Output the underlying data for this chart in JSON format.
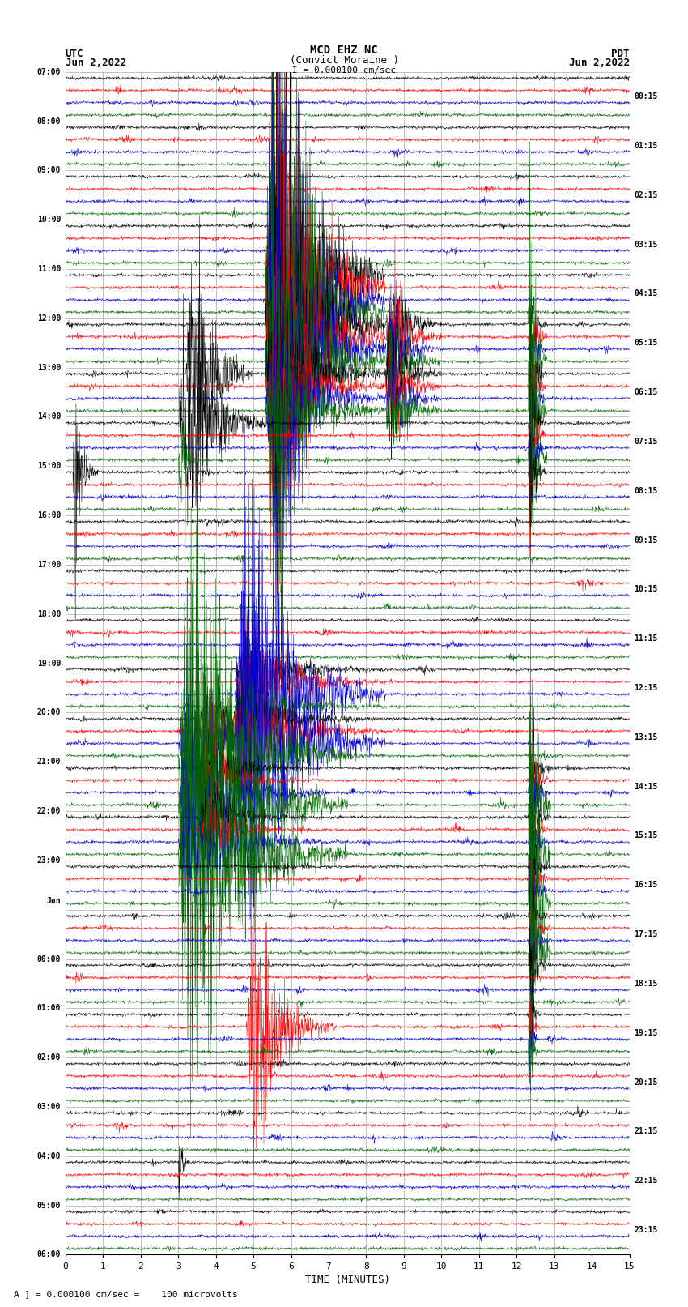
{
  "title_line1": "MCD EHZ NC",
  "title_line2": "(Convict Moraine )",
  "scale_label": "I = 0.000100 cm/sec",
  "utc_label": "UTC",
  "pdt_label": "PDT",
  "date_left": "Jun 2,2022",
  "date_right": "Jun 2,2022",
  "xlabel": "TIME (MINUTES)",
  "footer": "A ] = 0.000100 cm/sec =    100 microvolts",
  "trace_colors": [
    "black",
    "red",
    "#0000cc",
    "#006600"
  ],
  "bg_color": "white",
  "grid_color": "#aaaaaa",
  "fig_width": 8.5,
  "fig_height": 16.13,
  "xlim": [
    0,
    15
  ],
  "xticks": [
    0,
    1,
    2,
    3,
    4,
    5,
    6,
    7,
    8,
    9,
    10,
    11,
    12,
    13,
    14,
    15
  ],
  "left_time_labels": [
    "07:00",
    "08:00",
    "09:00",
    "10:00",
    "11:00",
    "12:00",
    "13:00",
    "14:00",
    "15:00",
    "16:00",
    "17:00",
    "18:00",
    "19:00",
    "20:00",
    "21:00",
    "22:00",
    "23:00",
    "Jun",
    "00:00",
    "01:00",
    "02:00",
    "03:00",
    "04:00",
    "05:00",
    "06:00"
  ],
  "right_time_labels": [
    "00:15",
    "01:15",
    "02:15",
    "03:15",
    "04:15",
    "05:15",
    "06:15",
    "07:15",
    "08:15",
    "09:15",
    "10:15",
    "11:15",
    "12:15",
    "13:15",
    "14:15",
    "15:15",
    "16:15",
    "17:15",
    "18:15",
    "19:15",
    "20:15",
    "21:15",
    "22:15",
    "23:15"
  ],
  "n_traces": 96,
  "n_pts": 1800,
  "seed": 12345
}
